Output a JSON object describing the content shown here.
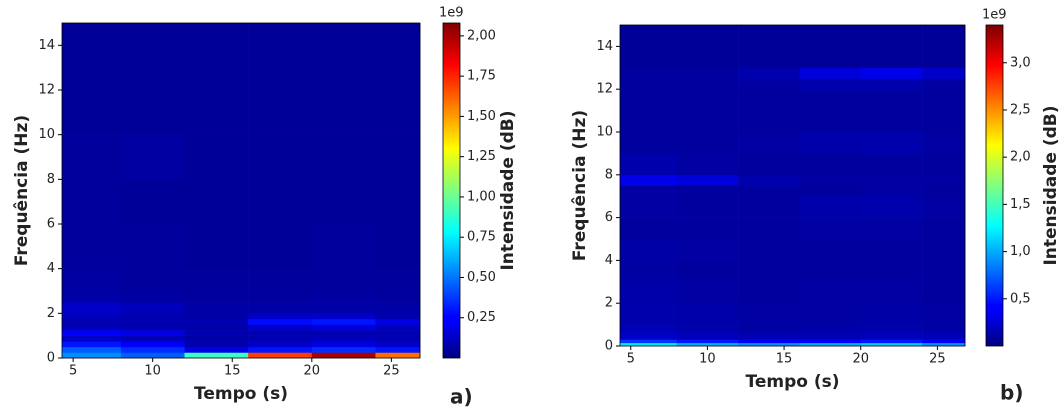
{
  "chart_data": [
    {
      "type": "heatmap",
      "panel_label": "a)",
      "xlabel": "Tempo (s)",
      "ylabel": "Frequência (Hz)",
      "colorbar_label": "Intensidade (dB)",
      "colorbar_offset": "1e9",
      "xlim": [
        4.3,
        26.8
      ],
      "ylim": [
        0,
        15
      ],
      "xticks": [
        5,
        10,
        15,
        20,
        25
      ],
      "yticks": [
        0,
        2,
        4,
        6,
        8,
        10,
        12,
        14
      ],
      "clim": [
        0,
        2.08
      ],
      "colormap": "jet",
      "cticks": [
        {
          "value": 0.25,
          "label": "0,25"
        },
        {
          "value": 0.5,
          "label": "0,50"
        },
        {
          "value": 0.75,
          "label": "0,75"
        },
        {
          "value": 1.0,
          "label": "1,00"
        },
        {
          "value": 1.25,
          "label": "1,25"
        },
        {
          "value": 1.5,
          "label": "1,50"
        },
        {
          "value": 1.75,
          "label": "1,75"
        },
        {
          "value": 2.0,
          "label": "2,00"
        }
      ],
      "x_bins": [
        4.3,
        8,
        12,
        16,
        20,
        24,
        26.8
      ],
      "y_bins": [
        0,
        0.25,
        0.5,
        0.75,
        1,
        1.25,
        1.5,
        1.75,
        2,
        2.5,
        3,
        4,
        6,
        8,
        10,
        12,
        15
      ],
      "z": [
        [
          0.55,
          0.45,
          0.9,
          1.7,
          2.0,
          1.6
        ],
        [
          0.45,
          0.35,
          0.2,
          0.3,
          0.35,
          0.3
        ],
        [
          0.3,
          0.25,
          0.1,
          0.15,
          0.2,
          0.15
        ],
        [
          0.15,
          0.12,
          0.08,
          0.1,
          0.12,
          0.1
        ],
        [
          0.25,
          0.2,
          0.1,
          0.1,
          0.1,
          0.1
        ],
        [
          0.12,
          0.1,
          0.08,
          0.15,
          0.18,
          0.12
        ],
        [
          0.1,
          0.1,
          0.1,
          0.28,
          0.3,
          0.2
        ],
        [
          0.12,
          0.1,
          0.08,
          0.15,
          0.15,
          0.1
        ],
        [
          0.15,
          0.12,
          0.08,
          0.08,
          0.08,
          0.08
        ],
        [
          0.08,
          0.07,
          0.06,
          0.06,
          0.07,
          0.06
        ],
        [
          0.07,
          0.06,
          0.06,
          0.06,
          0.06,
          0.06
        ],
        [
          0.06,
          0.06,
          0.05,
          0.05,
          0.06,
          0.05
        ],
        [
          0.06,
          0.05,
          0.05,
          0.05,
          0.05,
          0.05
        ],
        [
          0.06,
          0.07,
          0.05,
          0.05,
          0.05,
          0.05
        ],
        [
          0.05,
          0.05,
          0.05,
          0.05,
          0.05,
          0.05
        ],
        [
          0.05,
          0.05,
          0.05,
          0.05,
          0.05,
          0.05
        ]
      ]
    },
    {
      "type": "heatmap",
      "panel_label": "b)",
      "xlabel": "Tempo (s)",
      "ylabel": "Frequência (Hz)",
      "colorbar_label": "Intensidade (dB)",
      "colorbar_offset": "1e9",
      "xlim": [
        4.3,
        26.8
      ],
      "ylim": [
        0,
        15
      ],
      "xticks": [
        5,
        10,
        15,
        20,
        25
      ],
      "yticks": [
        0,
        2,
        4,
        6,
        8,
        10,
        12,
        14
      ],
      "clim": [
        0,
        3.4
      ],
      "colormap": "jet",
      "cticks": [
        {
          "value": 0.5,
          "label": "0,5"
        },
        {
          "value": 1.0,
          "label": "1,0"
        },
        {
          "value": 1.5,
          "label": "1,5"
        },
        {
          "value": 2.0,
          "label": "2,0"
        },
        {
          "value": 2.5,
          "label": "2,5"
        },
        {
          "value": 3.0,
          "label": "3,0"
        }
      ],
      "x_bins": [
        4.3,
        8,
        12,
        16,
        20,
        24,
        26.8
      ],
      "y_bins": [
        0,
        0.15,
        0.3,
        0.6,
        1,
        2,
        3,
        4,
        5,
        6,
        7,
        7.5,
        8,
        9,
        10,
        12,
        12.5,
        13,
        15
      ],
      "z": [
        [
          1.2,
          1.0,
          0.9,
          1.0,
          1.1,
          0.9
        ],
        [
          0.6,
          0.5,
          0.4,
          0.4,
          0.5,
          0.4
        ],
        [
          0.25,
          0.2,
          0.18,
          0.18,
          0.2,
          0.18
        ],
        [
          0.18,
          0.15,
          0.12,
          0.14,
          0.15,
          0.13
        ],
        [
          0.15,
          0.14,
          0.12,
          0.12,
          0.13,
          0.12
        ],
        [
          0.14,
          0.12,
          0.1,
          0.12,
          0.12,
          0.1
        ],
        [
          0.12,
          0.1,
          0.1,
          0.1,
          0.1,
          0.1
        ],
        [
          0.13,
          0.12,
          0.1,
          0.1,
          0.1,
          0.1
        ],
        [
          0.1,
          0.1,
          0.1,
          0.12,
          0.12,
          0.1
        ],
        [
          0.12,
          0.1,
          0.1,
          0.14,
          0.15,
          0.12
        ],
        [
          0.12,
          0.1,
          0.1,
          0.1,
          0.12,
          0.1
        ],
        [
          0.35,
          0.3,
          0.15,
          0.12,
          0.12,
          0.12
        ],
        [
          0.15,
          0.12,
          0.1,
          0.1,
          0.1,
          0.1
        ],
        [
          0.1,
          0.1,
          0.12,
          0.14,
          0.15,
          0.12
        ],
        [
          0.1,
          0.1,
          0.1,
          0.1,
          0.1,
          0.1
        ],
        [
          0.1,
          0.1,
          0.12,
          0.15,
          0.15,
          0.12
        ],
        [
          0.1,
          0.1,
          0.15,
          0.3,
          0.35,
          0.25
        ],
        [
          0.08,
          0.08,
          0.08,
          0.08,
          0.08,
          0.08
        ]
      ]
    }
  ]
}
